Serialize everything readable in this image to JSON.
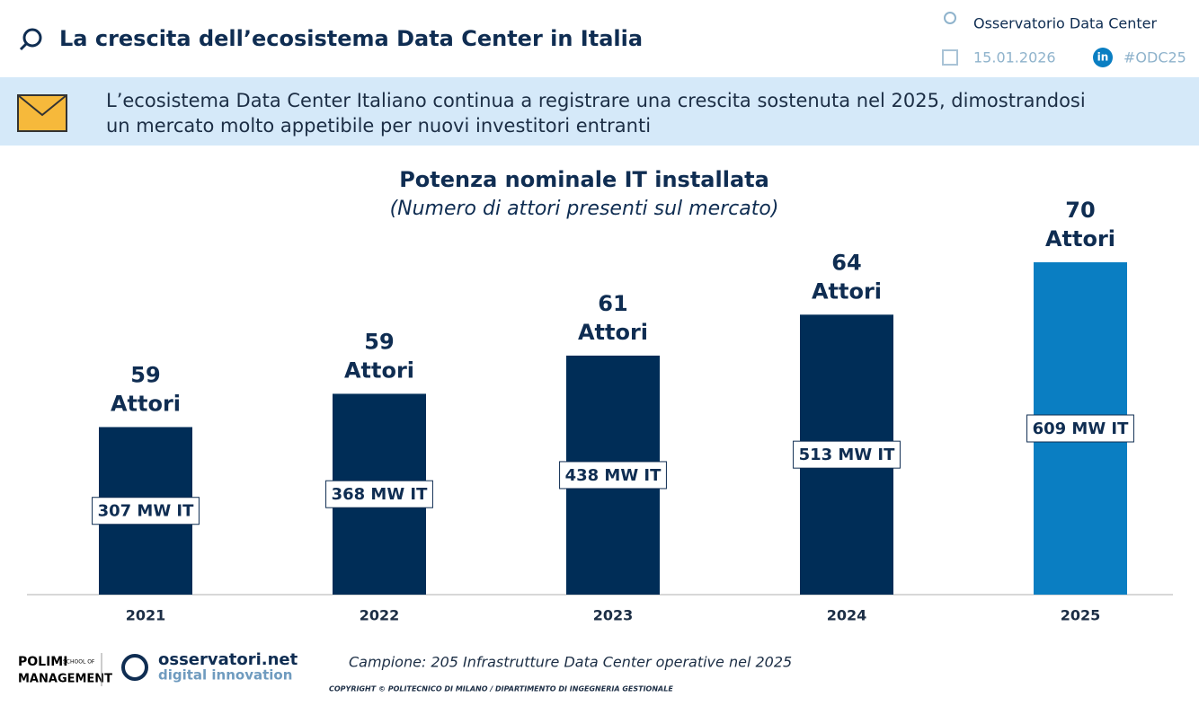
{
  "header": {
    "title": "La crescita dell’ecosistema Data Center in Italia",
    "source": "Osservatorio Data Center",
    "date": "15.01.2026",
    "hashtag": "#ODC25",
    "linkedin": "in"
  },
  "banner": {
    "lines": [
      "L’ecosistema Data Center Italiano continua a registrare una crescita sostenuta nel 2025, dimostrandosi",
      "un mercato molto appetibile per nuovi investitori entranti"
    ]
  },
  "chart_data": {
    "type": "bar",
    "title": "Potenza nominale IT installata",
    "subtitle": "(Numero di attori presenti sul mercato)",
    "categories": [
      "2021",
      "2022",
      "2023",
      "2024",
      "2025"
    ],
    "values": [
      307,
      368,
      438,
      513,
      609
    ],
    "value_labels": [
      "307 MW IT",
      "368 MW IT",
      "438 MW IT",
      "513 MW IT",
      "609 MW IT"
    ],
    "actors": [
      59,
      59,
      61,
      64,
      70
    ],
    "actors_unit": "Attori",
    "colors": [
      "#002d57",
      "#002d57",
      "#002d57",
      "#002d57",
      "#0a7ec2"
    ]
  },
  "footer": {
    "school": [
      "POLIMI",
      "SCHOOL OF",
      "MANAGEMENT"
    ],
    "brand": [
      "osservatori.net",
      "digital innovation"
    ],
    "note": "Campione: 205 Infrastrutture Data Center operative nel 2025",
    "copyright": "COPYRIGHT © POLITECNICO DI MILANO / DIPARTIMENTO DI INGEGNERIA GESTIONALE"
  }
}
